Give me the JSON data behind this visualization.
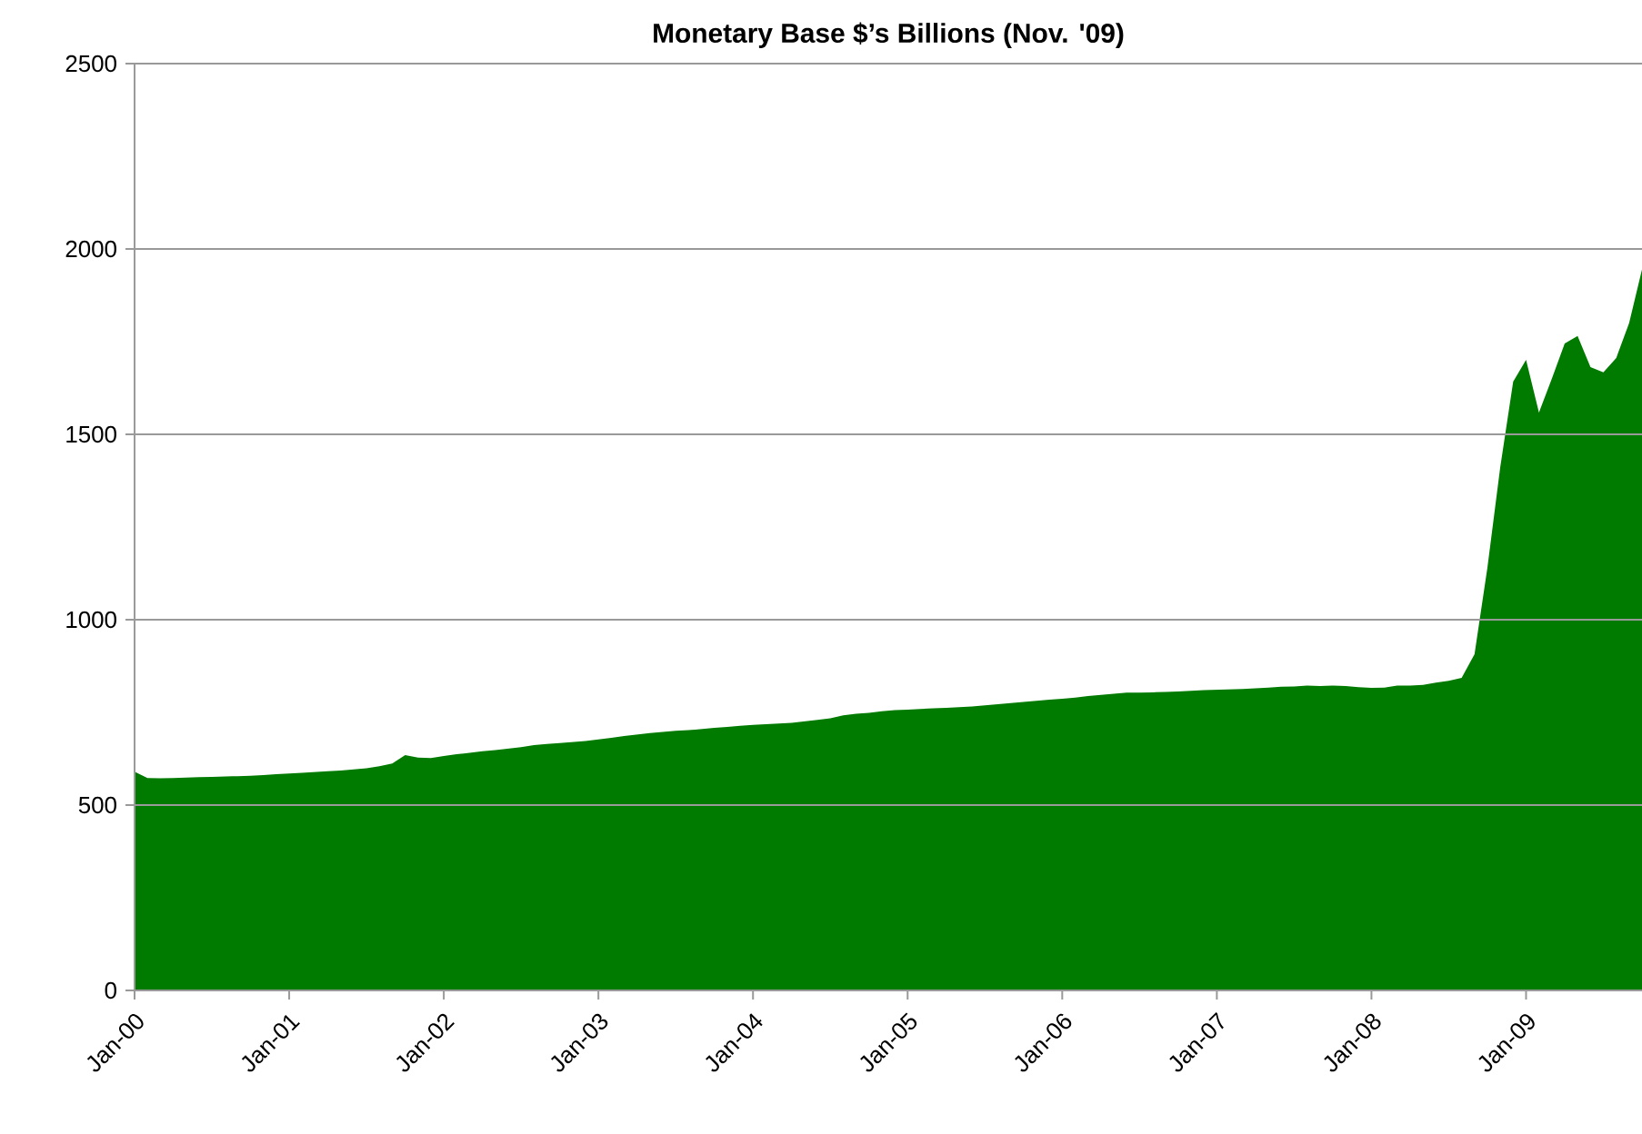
{
  "chart_data": {
    "type": "area",
    "title": "Monetary Base $’s Billions (Nov. '09)",
    "categories": [
      "Jan-00",
      null,
      null,
      null,
      null,
      null,
      null,
      null,
      null,
      null,
      null,
      null,
      "Jan-01",
      null,
      null,
      null,
      null,
      null,
      null,
      null,
      null,
      null,
      null,
      null,
      "Jan-02",
      null,
      null,
      null,
      null,
      null,
      null,
      null,
      null,
      null,
      null,
      null,
      "Jan-03",
      null,
      null,
      null,
      null,
      null,
      null,
      null,
      null,
      null,
      null,
      null,
      "Jan-04",
      null,
      null,
      null,
      null,
      null,
      null,
      null,
      null,
      null,
      null,
      null,
      "Jan-05",
      null,
      null,
      null,
      null,
      null,
      null,
      null,
      null,
      null,
      null,
      null,
      "Jan-06",
      null,
      null,
      null,
      null,
      null,
      null,
      null,
      null,
      null,
      null,
      null,
      "Jan-07",
      null,
      null,
      null,
      null,
      null,
      null,
      null,
      null,
      null,
      null,
      null,
      "Jan-08",
      null,
      null,
      null,
      null,
      null,
      null,
      null,
      null,
      null,
      null,
      null,
      "Jan-09",
      null,
      null,
      null,
      null,
      null,
      null,
      null,
      null,
      null
    ],
    "values": [
      590,
      573,
      572,
      573,
      574,
      575,
      576,
      577,
      578,
      579,
      581,
      583,
      585,
      587,
      589,
      591,
      593,
      596,
      599,
      605,
      612,
      635,
      628,
      627,
      632,
      637,
      641,
      645,
      648,
      652,
      656,
      662,
      665,
      667,
      670,
      673,
      677,
      681,
      686,
      690,
      694,
      697,
      700,
      702,
      705,
      708,
      711,
      714,
      716,
      718,
      720,
      722,
      726,
      730,
      734,
      742,
      746,
      749,
      753,
      756,
      757,
      759,
      761,
      762,
      764,
      766,
      769,
      772,
      775,
      778,
      781,
      784,
      787,
      790,
      794,
      797,
      800,
      803,
      803,
      804,
      805,
      806,
      808,
      810,
      811,
      812,
      813,
      815,
      817,
      819,
      820,
      822,
      821,
      822,
      821,
      818,
      816,
      817,
      822,
      822,
      824,
      830,
      835,
      843,
      907,
      1140,
      1412,
      1642,
      1701,
      1559,
      1650,
      1745,
      1765,
      1681,
      1667,
      1706,
      1800,
      1945
    ],
    "color": "#007b00",
    "ylim": [
      0,
      2500
    ],
    "yticks": [
      0,
      500,
      1000,
      1500,
      2000,
      2500
    ],
    "grid": "y"
  }
}
